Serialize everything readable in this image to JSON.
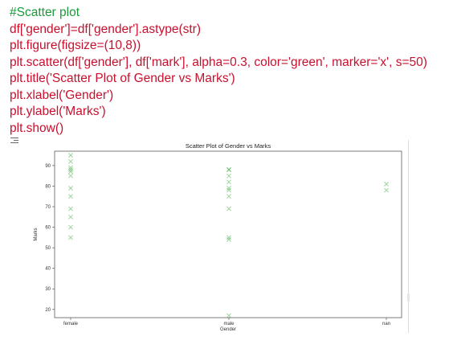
{
  "code_cell": {
    "lines": [
      {
        "text": "#Scatter plot",
        "kind": "comment"
      },
      {
        "text": "df['gender']=df['gender'].astype(str)",
        "kind": "code"
      },
      {
        "text": "plt.figure(figsize=(10,8))",
        "kind": "code"
      },
      {
        "text": "plt.scatter(df['gender'], df['mark'], alpha=0.3, color='green', marker='x', s=50)",
        "kind": "code"
      },
      {
        "text": "plt.title('Scatter Plot of Gender vs Marks')",
        "kind": "code"
      },
      {
        "text": "plt.xlabel('Gender')",
        "kind": "code"
      },
      {
        "text": "plt.ylabel('Marks')",
        "kind": "code"
      },
      {
        "text": "plt.show()",
        "kind": "code"
      }
    ]
  },
  "output": {
    "icon": "output-toggle-icon"
  },
  "chart_data": {
    "type": "scatter",
    "title": "Scatter Plot of Gender vs Marks",
    "xlabel": "Gender",
    "ylabel": "Marks",
    "categories": [
      "female",
      "male",
      "nan"
    ],
    "yticks": [
      20,
      30,
      40,
      50,
      60,
      70,
      80,
      90
    ],
    "ylim": [
      16,
      97
    ],
    "marker": "x",
    "color": "#2ca02c",
    "alpha": 0.3,
    "grid": false,
    "points": [
      {
        "x": "female",
        "y": 95
      },
      {
        "x": "female",
        "y": 92
      },
      {
        "x": "female",
        "y": 89
      },
      {
        "x": "female",
        "y": 88
      },
      {
        "x": "female",
        "y": 87
      },
      {
        "x": "female",
        "y": 85
      },
      {
        "x": "female",
        "y": 79
      },
      {
        "x": "female",
        "y": 75
      },
      {
        "x": "female",
        "y": 69
      },
      {
        "x": "female",
        "y": 65
      },
      {
        "x": "female",
        "y": 60
      },
      {
        "x": "female",
        "y": 55
      },
      {
        "x": "male",
        "y": 88
      },
      {
        "x": "male",
        "y": 88
      },
      {
        "x": "male",
        "y": 85
      },
      {
        "x": "male",
        "y": 82
      },
      {
        "x": "male",
        "y": 79
      },
      {
        "x": "male",
        "y": 78
      },
      {
        "x": "male",
        "y": 75
      },
      {
        "x": "male",
        "y": 69
      },
      {
        "x": "male",
        "y": 55
      },
      {
        "x": "male",
        "y": 54
      },
      {
        "x": "male",
        "y": 17
      },
      {
        "x": "nan",
        "y": 81
      },
      {
        "x": "nan",
        "y": 78
      }
    ]
  }
}
